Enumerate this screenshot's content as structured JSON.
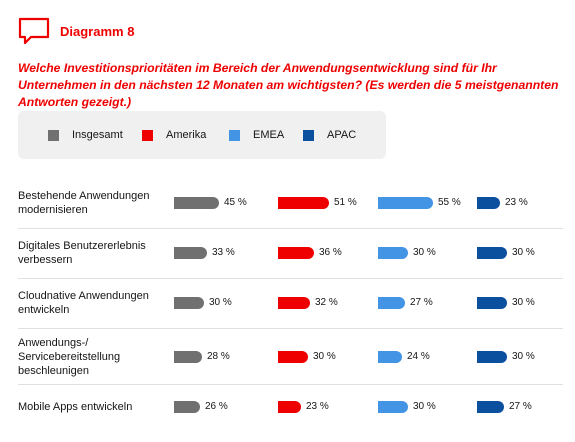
{
  "header": {
    "title": "Diagramm 8"
  },
  "chart_data": {
    "type": "bar",
    "title": "Welche Investitionsprioritäten im Bereich der Anwendungsentwicklung sind für Ihr Unternehmen in den nächsten 12 Monaten am wichtigsten? (Es werden die 5 meistgenannten Antworten gezeigt.)",
    "orientation": "horizontal",
    "categories": [
      "Bestehende Anwendungen modernisieren",
      "Digitales Benutzererlebnis verbessern",
      "Cloudnative Anwendungen entwickeln",
      "Anwendungs-/ Servicebereitstellung beschleunigen",
      "Mobile Apps entwickeln"
    ],
    "series": [
      {
        "name": "Insgesamt",
        "color": "#707070",
        "values": [
          45,
          33,
          30,
          28,
          26
        ]
      },
      {
        "name": "Amerika",
        "color": "#ee0000",
        "values": [
          51,
          36,
          32,
          30,
          23
        ]
      },
      {
        "name": "EMEA",
        "color": "#4394e5",
        "values": [
          55,
          30,
          27,
          24,
          30
        ]
      },
      {
        "name": "APAC",
        "color": "#0b4f9f",
        "values": [
          23,
          30,
          30,
          30,
          27
        ]
      }
    ],
    "value_suffix": " %",
    "legend_position": "top"
  }
}
